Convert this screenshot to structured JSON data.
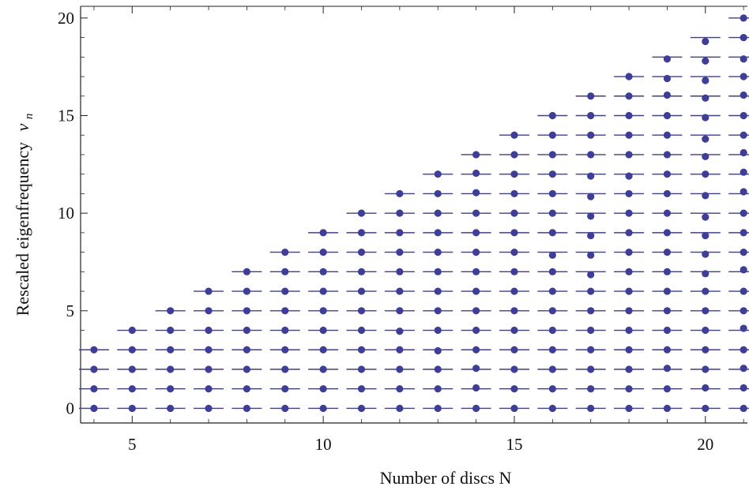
{
  "chart_data": {
    "type": "scatter",
    "title": "",
    "xlabel": "Number of discs N",
    "ylabel_text": "Rescaled eigenfrequency",
    "ylabel_symbol": "ν",
    "ylabel_subscript": "n",
    "xlim": [
      3.65,
      21.1
    ],
    "ylim": [
      -0.75,
      20.6
    ],
    "x_ticks": [
      5,
      10,
      15,
      20
    ],
    "y_ticks": [
      0,
      5,
      10,
      15,
      20
    ],
    "grid": false,
    "legend": "none",
    "x": [
      4,
      5,
      6,
      7,
      8,
      9,
      10,
      11,
      12,
      13,
      14,
      15,
      16,
      17,
      18,
      19,
      20,
      21
    ],
    "series": [
      {
        "role": "reference_levels",
        "marker": "dash",
        "description_values": "integer levels n = 0 .. N-1 for each N",
        "levels": [
          [
            0,
            1,
            2,
            3
          ],
          [
            0,
            1,
            2,
            3,
            4
          ],
          [
            0,
            1,
            2,
            3,
            4,
            5
          ],
          [
            0,
            1,
            2,
            3,
            4,
            5,
            6
          ],
          [
            0,
            1,
            2,
            3,
            4,
            5,
            6,
            7
          ],
          [
            0,
            1,
            2,
            3,
            4,
            5,
            6,
            7,
            8
          ],
          [
            0,
            1,
            2,
            3,
            4,
            5,
            6,
            7,
            8,
            9
          ],
          [
            0,
            1,
            2,
            3,
            4,
            5,
            6,
            7,
            8,
            9,
            10
          ],
          [
            0,
            1,
            2,
            3,
            4,
            5,
            6,
            7,
            8,
            9,
            10,
            11
          ],
          [
            0,
            1,
            2,
            3,
            4,
            5,
            6,
            7,
            8,
            9,
            10,
            11,
            12
          ],
          [
            0,
            1,
            2,
            3,
            4,
            5,
            6,
            7,
            8,
            9,
            10,
            11,
            12,
            13
          ],
          [
            0,
            1,
            2,
            3,
            4,
            5,
            6,
            7,
            8,
            9,
            10,
            11,
            12,
            13,
            14
          ],
          [
            0,
            1,
            2,
            3,
            4,
            5,
            6,
            7,
            8,
            9,
            10,
            11,
            12,
            13,
            14,
            15
          ],
          [
            0,
            1,
            2,
            3,
            4,
            5,
            6,
            7,
            8,
            9,
            10,
            11,
            12,
            13,
            14,
            15,
            16
          ],
          [
            0,
            1,
            2,
            3,
            4,
            5,
            6,
            7,
            8,
            9,
            10,
            11,
            12,
            13,
            14,
            15,
            16,
            17
          ],
          [
            0,
            1,
            2,
            3,
            4,
            5,
            6,
            7,
            8,
            9,
            10,
            11,
            12,
            13,
            14,
            15,
            16,
            17,
            18
          ],
          [
            0,
            1,
            2,
            3,
            4,
            5,
            6,
            7,
            8,
            9,
            10,
            11,
            12,
            13,
            14,
            15,
            16,
            17,
            18,
            19
          ],
          [
            0,
            1,
            2,
            3,
            4,
            5,
            6,
            7,
            8,
            9,
            10,
            11,
            12,
            13,
            14,
            15,
            16,
            17,
            18,
            19,
            20
          ]
        ]
      },
      {
        "role": "eigenfrequencies",
        "marker": "dot",
        "values": [
          [
            0,
            1,
            2,
            3
          ],
          [
            0,
            1,
            2,
            3,
            4
          ],
          [
            0,
            1,
            2,
            3,
            4,
            5
          ],
          [
            0,
            1,
            2,
            3,
            4,
            5,
            6
          ],
          [
            0,
            1,
            2,
            3,
            4,
            5,
            6,
            7
          ],
          [
            0,
            1,
            2,
            3,
            4,
            5,
            6,
            7,
            8
          ],
          [
            0,
            1,
            2,
            3,
            4,
            5,
            6,
            7,
            8,
            9
          ],
          [
            0,
            1,
            2,
            3,
            4,
            5,
            6,
            7,
            8,
            9,
            10
          ],
          [
            0,
            1,
            2,
            3,
            3.95,
            5,
            6,
            7,
            8,
            9,
            10,
            11
          ],
          [
            0,
            1,
            2,
            2.95,
            4,
            5,
            6,
            7,
            8,
            9,
            10,
            11,
            12
          ],
          [
            0,
            1.05,
            2.05,
            3,
            4,
            5,
            6,
            7,
            8,
            9,
            10,
            11.05,
            12.05,
            13
          ],
          [
            0,
            1,
            2,
            3,
            4,
            5,
            6,
            7,
            8,
            9,
            10,
            11,
            12,
            13,
            14
          ],
          [
            0,
            1,
            2,
            3,
            4,
            5,
            6,
            7,
            7.85,
            9,
            10,
            11,
            12,
            13,
            14,
            15
          ],
          [
            0,
            1,
            2,
            3,
            4,
            5,
            6,
            6.85,
            7.85,
            8.85,
            9.85,
            10.85,
            11.9,
            13,
            14,
            15,
            16
          ],
          [
            0,
            1,
            2,
            3,
            4,
            5,
            6,
            7,
            8,
            9,
            10,
            11,
            11.9,
            13,
            14,
            15,
            16,
            17
          ],
          [
            0,
            1,
            2.05,
            3,
            4,
            5,
            6,
            7,
            8,
            9,
            10,
            11,
            12,
            13,
            14,
            15,
            16.05,
            16.9,
            17.9
          ],
          [
            0,
            1.05,
            2,
            3,
            4,
            5,
            6,
            6.9,
            7.9,
            8.85,
            9.8,
            10.9,
            12,
            12.9,
            13.8,
            14.9,
            15.9,
            16.8,
            17.8,
            18.8
          ],
          [
            0,
            1.05,
            2.05,
            3,
            4.1,
            5,
            6,
            7.1,
            8,
            9,
            10,
            11.1,
            12.1,
            13.1,
            14,
            15,
            16.05,
            17,
            17.9,
            19,
            20
          ]
        ],
        "color": "#3d3d9e"
      }
    ]
  },
  "colors": {
    "marker": "#3d3d9e",
    "axis": "#222222",
    "background": "#ffffff"
  }
}
